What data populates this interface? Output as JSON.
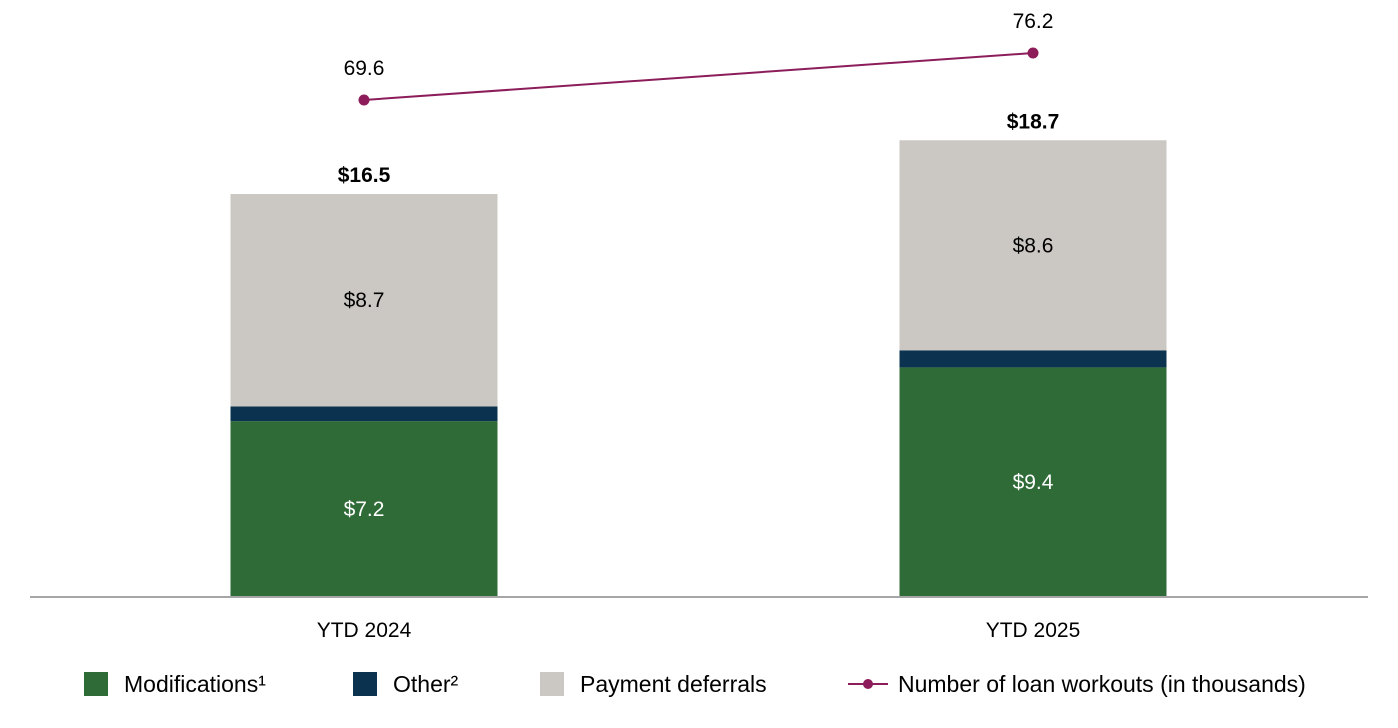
{
  "chart_data": {
    "type": "bar",
    "stacked": true,
    "categories": [
      "YTD 2024",
      "YTD 2025"
    ],
    "series": [
      {
        "name": "Modifications¹",
        "values": [
          7.2,
          9.4
        ],
        "labels": [
          "$7.2",
          "$9.4"
        ],
        "color": "#2e6b37"
      },
      {
        "name": "Other²",
        "values": [
          0.6,
          0.7
        ],
        "labels": [
          "",
          ""
        ],
        "color": "#0b3350"
      },
      {
        "name": "Payment deferrals",
        "values": [
          8.7,
          8.6
        ],
        "labels": [
          "$8.7",
          "$8.6"
        ],
        "color": "#cbc8c3"
      }
    ],
    "totals": [
      16.5,
      18.7
    ],
    "total_labels": [
      "$16.5",
      "$18.7"
    ],
    "line_series": {
      "name": "Number of loan workouts (in thousands)",
      "values": [
        69.6,
        76.2
      ],
      "labels": [
        "69.6",
        "76.2"
      ],
      "color": "#8c1d5a"
    },
    "legend_position": "bottom",
    "grid": false
  }
}
